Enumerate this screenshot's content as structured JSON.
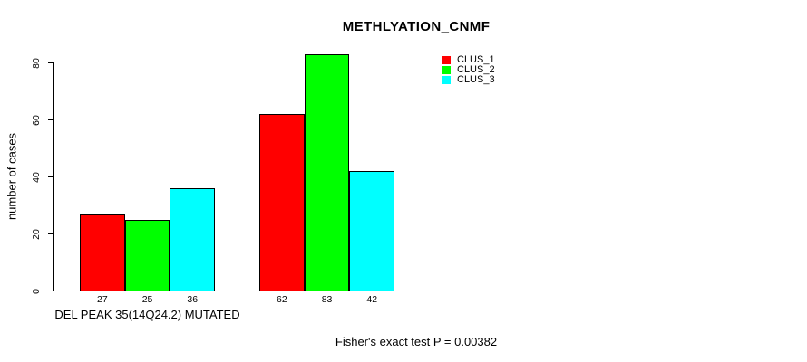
{
  "title": "METHLYATION_CNMF",
  "footer": "Fisher's exact test P = 0.00382",
  "y_axis": {
    "label": "number of cases"
  },
  "x_axis": {
    "group_label": "DEL PEAK 35(14Q24.2) MUTATED"
  },
  "legend": {
    "items": [
      {
        "label": "CLUS_1",
        "color": "#ff0000"
      },
      {
        "label": "CLUS_2",
        "color": "#00ff00"
      },
      {
        "label": "CLUS_3",
        "color": "#00ffff"
      }
    ]
  },
  "chart_data": {
    "type": "bar",
    "title": "METHLYATION_CNMF",
    "ylabel": "number of cases",
    "xlabel": "DEL PEAK 35(14Q24.2) MUTATED",
    "ylim": [
      0,
      80
    ],
    "yticks": [
      0,
      20,
      40,
      60,
      80
    ],
    "grid": false,
    "legend_position": "top-right",
    "groups": [
      "DEL PEAK 35(14Q24.2) MUTATED",
      ""
    ],
    "series": [
      {
        "name": "CLUS_1",
        "color": "#ff0000",
        "values": [
          27,
          62
        ]
      },
      {
        "name": "CLUS_2",
        "color": "#00ff00",
        "values": [
          25,
          83
        ]
      },
      {
        "name": "CLUS_3",
        "color": "#00ffff",
        "values": [
          36,
          42
        ]
      }
    ],
    "bar_value_labels": [
      [
        27,
        25,
        36
      ],
      [
        62,
        83,
        42
      ]
    ],
    "annotation": "Fisher's exact test P = 0.00382"
  }
}
